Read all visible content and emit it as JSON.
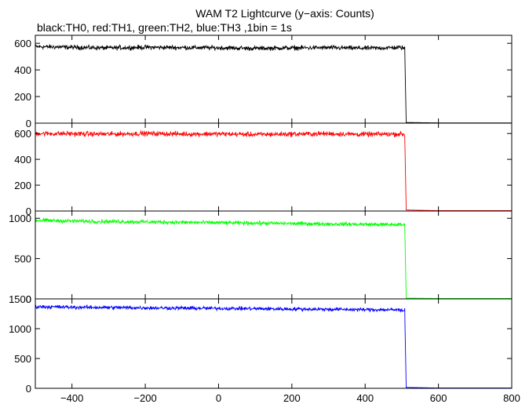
{
  "chart_data": {
    "type": "line",
    "title": "WAM T2 Lightcurve (y−axis: Counts)",
    "subtitle": "black:TH0, red:TH1, green:TH2, blue:TH3 ,1bin = 1s",
    "xlabel": "",
    "ylabel": "",
    "xlim": [
      -500,
      800
    ],
    "x_ticks": [
      "−400",
      "−200",
      "0",
      "200",
      "400",
      "600",
      "800"
    ],
    "x_tick_values": [
      -400,
      -200,
      0,
      200,
      400,
      600,
      800
    ],
    "grid": false,
    "panels": [
      {
        "ylim": [
          0,
          660
        ],
        "y_ticks": [
          "0",
          "200",
          "400",
          "600"
        ],
        "y_tick_values": [
          0,
          200,
          400,
          600
        ],
        "series": [
          {
            "color": "#000000",
            "mean_before_drop": 570,
            "noise_amplitude": 25,
            "drop_x": 510,
            "value_after_drop": 2,
            "x": [
              -500,
              -400,
              -300,
              -200,
              -100,
              0,
              100,
              200,
              300,
              400,
              500,
              508,
              512,
              600,
              700,
              800
            ],
            "y": [
              575,
              570,
              565,
              570,
              568,
              566,
              562,
              565,
              567,
              563,
              568,
              560,
              5,
              2,
              2,
              2
            ]
          }
        ]
      },
      {
        "ylim": [
          0,
          680
        ],
        "y_ticks": [
          "0",
          "200",
          "400",
          "600"
        ],
        "y_tick_values": [
          0,
          200,
          400,
          600
        ],
        "series": [
          {
            "color": "#ff0000",
            "mean_before_drop": 595,
            "noise_amplitude": 28,
            "drop_x": 510,
            "value_after_drop": 3,
            "x": [
              -500,
              -400,
              -300,
              -200,
              -100,
              0,
              100,
              200,
              300,
              400,
              500,
              508,
              512,
              600,
              700,
              800
            ],
            "y": [
              600,
              598,
              595,
              600,
              596,
              597,
              592,
              596,
              598,
              593,
              596,
              590,
              8,
              3,
              3,
              3
            ]
          }
        ]
      },
      {
        "ylim": [
          0,
          1090
        ],
        "y_ticks": [
          "0",
          "500",
          "1000"
        ],
        "y_tick_values": [
          0,
          500,
          1000
        ],
        "series": [
          {
            "color": "#00ff00",
            "mean_before_drop": 945,
            "noise_amplitude": 35,
            "drop_x": 510,
            "value_after_drop": 5,
            "x": [
              -500,
              -400,
              -300,
              -200,
              -100,
              0,
              100,
              200,
              300,
              400,
              500,
              508,
              512,
              600,
              700,
              800
            ],
            "y": [
              975,
              965,
              960,
              955,
              950,
              945,
              940,
              935,
              930,
              925,
              920,
              915,
              10,
              5,
              5,
              5
            ]
          }
        ]
      },
      {
        "ylim": [
          0,
          1500
        ],
        "y_ticks": [
          "0",
          "500",
          "1000",
          "1500"
        ],
        "y_tick_values": [
          0,
          500,
          1000,
          1500
        ],
        "series": [
          {
            "color": "#0000ff",
            "mean_before_drop": 1340,
            "noise_amplitude": 45,
            "drop_x": 510,
            "value_after_drop": 5,
            "x": [
              -500,
              -400,
              -300,
              -200,
              -100,
              0,
              100,
              200,
              300,
              400,
              500,
              508,
              512,
              600,
              700,
              800
            ],
            "y": [
              1370,
              1360,
              1355,
              1350,
              1345,
              1340,
              1335,
              1330,
              1325,
              1320,
              1315,
              1310,
              15,
              5,
              5,
              5
            ]
          }
        ]
      }
    ]
  }
}
